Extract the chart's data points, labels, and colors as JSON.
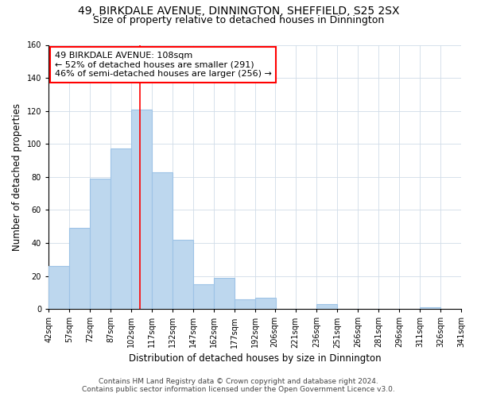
{
  "title": "49, BIRKDALE AVENUE, DINNINGTON, SHEFFIELD, S25 2SX",
  "subtitle": "Size of property relative to detached houses in Dinnington",
  "xlabel": "Distribution of detached houses by size in Dinnington",
  "ylabel": "Number of detached properties",
  "bar_left_edges": [
    42,
    57,
    72,
    87,
    102,
    117,
    132,
    147,
    162,
    177,
    192,
    206,
    221,
    236,
    251,
    266,
    281,
    296,
    311,
    326
  ],
  "bar_heights": [
    26,
    49,
    79,
    97,
    121,
    83,
    42,
    15,
    19,
    6,
    7,
    0,
    0,
    3,
    0,
    0,
    0,
    0,
    1,
    0
  ],
  "bin_width": 15,
  "bar_color": "#bdd7ee",
  "bar_edge_color": "#9dc3e6",
  "ylim": [
    0,
    160
  ],
  "yticks": [
    0,
    20,
    40,
    60,
    80,
    100,
    120,
    140,
    160
  ],
  "xtick_labels": [
    "42sqm",
    "57sqm",
    "72sqm",
    "87sqm",
    "102sqm",
    "117sqm",
    "132sqm",
    "147sqm",
    "162sqm",
    "177sqm",
    "192sqm",
    "206sqm",
    "221sqm",
    "236sqm",
    "251sqm",
    "266sqm",
    "281sqm",
    "296sqm",
    "311sqm",
    "326sqm",
    "341sqm"
  ],
  "red_line_x": 108,
  "annotation_title": "49 BIRKDALE AVENUE: 108sqm",
  "annotation_line1": "← 52% of detached houses are smaller (291)",
  "annotation_line2": "46% of semi-detached houses are larger (256) →",
  "footer_line1": "Contains HM Land Registry data © Crown copyright and database right 2024.",
  "footer_line2": "Contains public sector information licensed under the Open Government Licence v3.0.",
  "background_color": "#ffffff",
  "grid_color": "#d0dce8",
  "title_fontsize": 10,
  "subtitle_fontsize": 9,
  "axis_label_fontsize": 8.5,
  "tick_fontsize": 7,
  "annotation_fontsize": 8,
  "footer_fontsize": 6.5
}
